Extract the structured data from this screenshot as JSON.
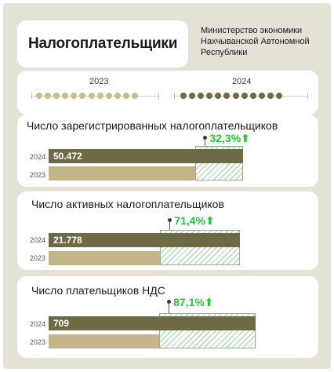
{
  "header": {
    "title": "Налогоплательщики",
    "ministry": "Министерство экономики Нахчыванской Автономной Республики"
  },
  "timeline": {
    "year_prev": "2023",
    "year_curr": "2024",
    "dots_per_year": 12
  },
  "colors": {
    "bar_2024": "#6e6a45",
    "bar_2023": "#c3b48a",
    "dot_2023": "#cdbd8a",
    "dot_2024": "#6e6a45",
    "growth": "#2cc23b",
    "background": "#e4e1d6"
  },
  "chart_data": [
    {
      "type": "bar",
      "title": "Число зарегистрированных налогоплательщиков",
      "categories": [
        "2024",
        "2023"
      ],
      "series": [
        {
          "values": [
            50472,
            38150
          ]
        }
      ],
      "value_labels": [
        "50.472",
        ""
      ],
      "growth_label": "32,3%",
      "arrow": "⬆"
    },
    {
      "type": "bar",
      "title": "Число активных налогоплательщиков",
      "categories": [
        "2024",
        "2023"
      ],
      "series": [
        {
          "values": [
            21778,
            12701
          ]
        }
      ],
      "value_labels": [
        "21.778",
        ""
      ],
      "growth_label": "71,4%",
      "arrow": "⬆"
    },
    {
      "type": "bar",
      "title": "Число плательщиков НДС",
      "categories": [
        "2024",
        "2023"
      ],
      "series": [
        {
          "values": [
            709,
            379
          ]
        }
      ],
      "value_labels": [
        "709",
        ""
      ],
      "growth_label": "87,1%",
      "arrow": "⬆"
    }
  ]
}
